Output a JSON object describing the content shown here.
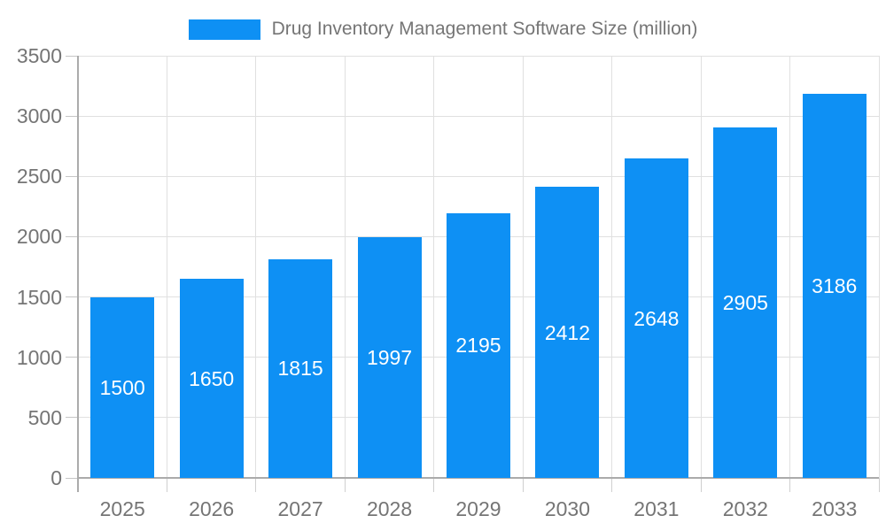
{
  "legend": {
    "label": "Drug Inventory Management Software Size (million)",
    "swatch_color": "#0e90f4",
    "position": "top"
  },
  "chart_data": {
    "type": "bar",
    "title": "Drug Inventory Management Software Size (million)",
    "categories": [
      "2025",
      "2026",
      "2027",
      "2028",
      "2029",
      "2030",
      "2031",
      "2032",
      "2033"
    ],
    "values": [
      1500,
      1650,
      1815,
      1997,
      2195,
      2412,
      2648,
      2905,
      3186
    ],
    "xlabel": "",
    "ylabel": "",
    "ylim": [
      0,
      3500
    ],
    "yticks": [
      0,
      500,
      1000,
      1500,
      2000,
      2500,
      3000,
      3500
    ],
    "grid": true,
    "legend_position": "top",
    "bar_color": "#0e90f4",
    "value_label_color": "#ffffff",
    "axis_text_color": "#757575"
  }
}
